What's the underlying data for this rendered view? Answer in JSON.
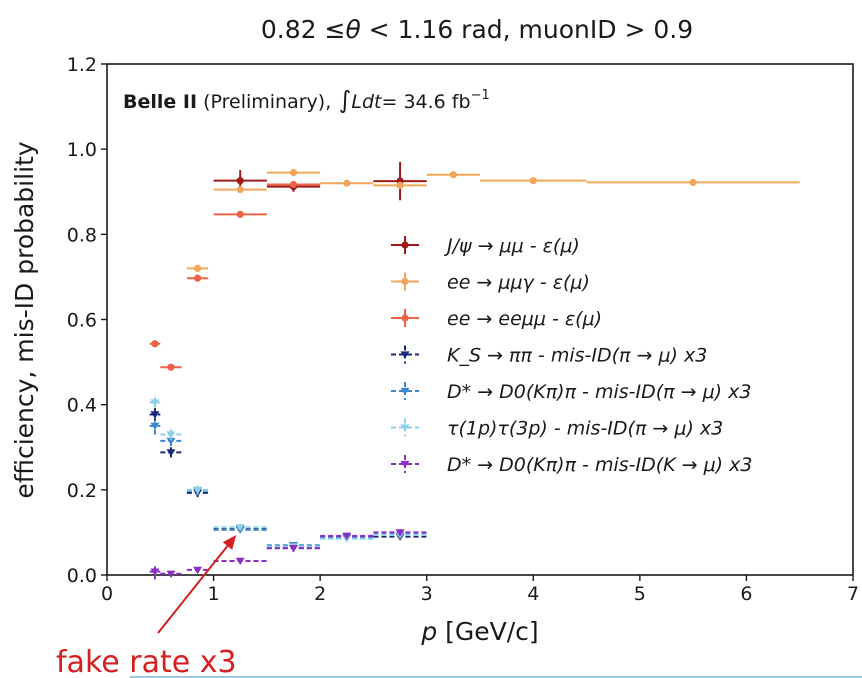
{
  "chart_data": {
    "type": "scatter",
    "title_parts": {
      "range": "0.82  ≤",
      "theta": "θ",
      "rest": " <  1.16 rad, muonID > 0.9"
    },
    "xlabel_var": "p",
    "xlabel_unit": " [GeV/c]",
    "ylabel": "efficiency, mis-ID probability",
    "xlim": [
      0,
      7
    ],
    "ylim": [
      0,
      1.2
    ],
    "xticks": [
      0,
      1,
      2,
      3,
      4,
      5,
      6,
      7
    ],
    "yticks": [
      "0.0",
      "0.2",
      "0.4",
      "0.6",
      "0.8",
      "1.0",
      "1.2"
    ],
    "grid": false,
    "legend_position": "center-right",
    "experiment": {
      "name": "Belle II",
      "status": "  (Preliminary),",
      "lumi_prefix": "Ldt",
      "lumi_value": "=  34.6 fb",
      "lumi_exp": "−1"
    },
    "series": [
      {
        "name_html": [
          "J/ψ → μμ - ε(μ)"
        ],
        "color": "#9e1a1a",
        "marker": "circle",
        "dashed": false,
        "points": [
          {
            "x": 1.25,
            "y": 0.926,
            "xerr": 0.25,
            "yerr": 0.025
          },
          {
            "x": 1.75,
            "y": 0.912,
            "xerr": 0.25,
            "yerr": 0.012
          },
          {
            "x": 2.75,
            "y": 0.925,
            "xerr": 0.25,
            "yerr": 0.045
          }
        ]
      },
      {
        "name_html": [
          "ee → μμγ - ε(μ)"
        ],
        "color": "#f2a65a",
        "marker": "circle",
        "dashed": false,
        "points": [
          {
            "x": 0.85,
            "y": 0.72,
            "xerr": 0.1,
            "yerr": 0.006
          },
          {
            "x": 1.25,
            "y": 0.905,
            "xerr": 0.25,
            "yerr": 0.006
          },
          {
            "x": 1.75,
            "y": 0.945,
            "xerr": 0.25,
            "yerr": 0.006
          },
          {
            "x": 2.25,
            "y": 0.92,
            "xerr": 0.25,
            "yerr": 0.006
          },
          {
            "x": 2.75,
            "y": 0.915,
            "xerr": 0.25,
            "yerr": 0.006
          },
          {
            "x": 3.25,
            "y": 0.94,
            "xerr": 0.25,
            "yerr": 0.006
          },
          {
            "x": 4.0,
            "y": 0.926,
            "xerr": 0.5,
            "yerr": 0.006
          },
          {
            "x": 5.5,
            "y": 0.922,
            "xerr": 1.0,
            "yerr": 0.006
          }
        ]
      },
      {
        "name_html": [
          "ee → eeμμ - ε(μ)"
        ],
        "color": "#ee6248",
        "marker": "circle",
        "dashed": false,
        "points": [
          {
            "x": 0.45,
            "y": 0.543,
            "xerr": 0.05,
            "yerr": 0.004
          },
          {
            "x": 0.6,
            "y": 0.488,
            "xerr": 0.1,
            "yerr": 0.004
          },
          {
            "x": 0.85,
            "y": 0.697,
            "xerr": 0.1,
            "yerr": 0.004
          },
          {
            "x": 1.25,
            "y": 0.847,
            "xerr": 0.25,
            "yerr": 0.004
          },
          {
            "x": 1.75,
            "y": 0.917,
            "xerr": 0.25,
            "yerr": 0.004
          }
        ]
      },
      {
        "name_html": [
          "K_S → ππ - mis-ID(π → μ) x3"
        ],
        "color": "#1a2a78",
        "marker": "tri-down",
        "dashed": true,
        "points": [
          {
            "x": 0.45,
            "y": 0.377,
            "xerr": 0.05,
            "yerr": 0.015
          },
          {
            "x": 0.6,
            "y": 0.288,
            "xerr": 0.1,
            "yerr": 0.012
          },
          {
            "x": 0.85,
            "y": 0.193,
            "xerr": 0.1,
            "yerr": 0.01
          },
          {
            "x": 1.25,
            "y": 0.108,
            "xerr": 0.25,
            "yerr": 0.006
          },
          {
            "x": 1.75,
            "y": 0.063,
            "xerr": 0.25,
            "yerr": 0.006
          },
          {
            "x": 2.25,
            "y": 0.088,
            "xerr": 0.25,
            "yerr": 0.006
          },
          {
            "x": 2.75,
            "y": 0.09,
            "xerr": 0.25,
            "yerr": 0.006
          }
        ]
      },
      {
        "name_html": [
          "D* → D0(Kπ)π - mis-ID(π → μ) x3"
        ],
        "color": "#3e86d0",
        "marker": "tri-down",
        "dashed": true,
        "points": [
          {
            "x": 0.45,
            "y": 0.35,
            "xerr": 0.05,
            "yerr": 0.02
          },
          {
            "x": 0.6,
            "y": 0.315,
            "xerr": 0.1,
            "yerr": 0.012
          },
          {
            "x": 0.85,
            "y": 0.198,
            "xerr": 0.1,
            "yerr": 0.01
          },
          {
            "x": 1.25,
            "y": 0.106,
            "xerr": 0.25,
            "yerr": 0.006
          },
          {
            "x": 1.75,
            "y": 0.07,
            "xerr": 0.25,
            "yerr": 0.006
          },
          {
            "x": 2.25,
            "y": 0.087,
            "xerr": 0.25,
            "yerr": 0.006
          },
          {
            "x": 2.75,
            "y": 0.095,
            "xerr": 0.25,
            "yerr": 0.006
          }
        ]
      },
      {
        "name_html": [
          "τ(1p)τ(3p) - mis-ID(π → μ) x3"
        ],
        "color": "#8ed0ea",
        "marker": "tri-down",
        "dashed": true,
        "points": [
          {
            "x": 0.45,
            "y": 0.405,
            "xerr": 0.05,
            "yerr": 0.012
          },
          {
            "x": 0.6,
            "y": 0.33,
            "xerr": 0.1,
            "yerr": 0.012
          },
          {
            "x": 0.85,
            "y": 0.2,
            "xerr": 0.1,
            "yerr": 0.01
          },
          {
            "x": 1.25,
            "y": 0.112,
            "xerr": 0.25,
            "yerr": 0.006
          },
          {
            "x": 1.75,
            "y": 0.067,
            "xerr": 0.25,
            "yerr": 0.006
          },
          {
            "x": 2.25,
            "y": 0.085,
            "xerr": 0.25,
            "yerr": 0.006
          },
          {
            "x": 2.75,
            "y": 0.094,
            "xerr": 0.25,
            "yerr": 0.006
          }
        ]
      },
      {
        "name_html": [
          "D* → D0(Kπ)π - mis-ID(K → μ) x3"
        ],
        "color": "#8a2ec8",
        "marker": "tri-down",
        "dashed": true,
        "points": [
          {
            "x": 0.45,
            "y": 0.008,
            "xerr": 0.05,
            "yerr": 0.018
          },
          {
            "x": 0.6,
            "y": 0.003,
            "xerr": 0.1,
            "yerr": 0.008
          },
          {
            "x": 0.85,
            "y": 0.012,
            "xerr": 0.1,
            "yerr": 0.008
          },
          {
            "x": 1.25,
            "y": 0.033,
            "xerr": 0.25,
            "yerr": 0.006
          },
          {
            "x": 1.75,
            "y": 0.063,
            "xerr": 0.25,
            "yerr": 0.008
          },
          {
            "x": 2.25,
            "y": 0.092,
            "xerr": 0.25,
            "yerr": 0.008
          },
          {
            "x": 2.75,
            "y": 0.1,
            "xerr": 0.25,
            "yerr": 0.008
          }
        ]
      }
    ]
  },
  "annotation": {
    "text": "fake rate x3",
    "color": "#d42020",
    "points_to": {
      "x": 1.25,
      "y": 0.108
    }
  }
}
